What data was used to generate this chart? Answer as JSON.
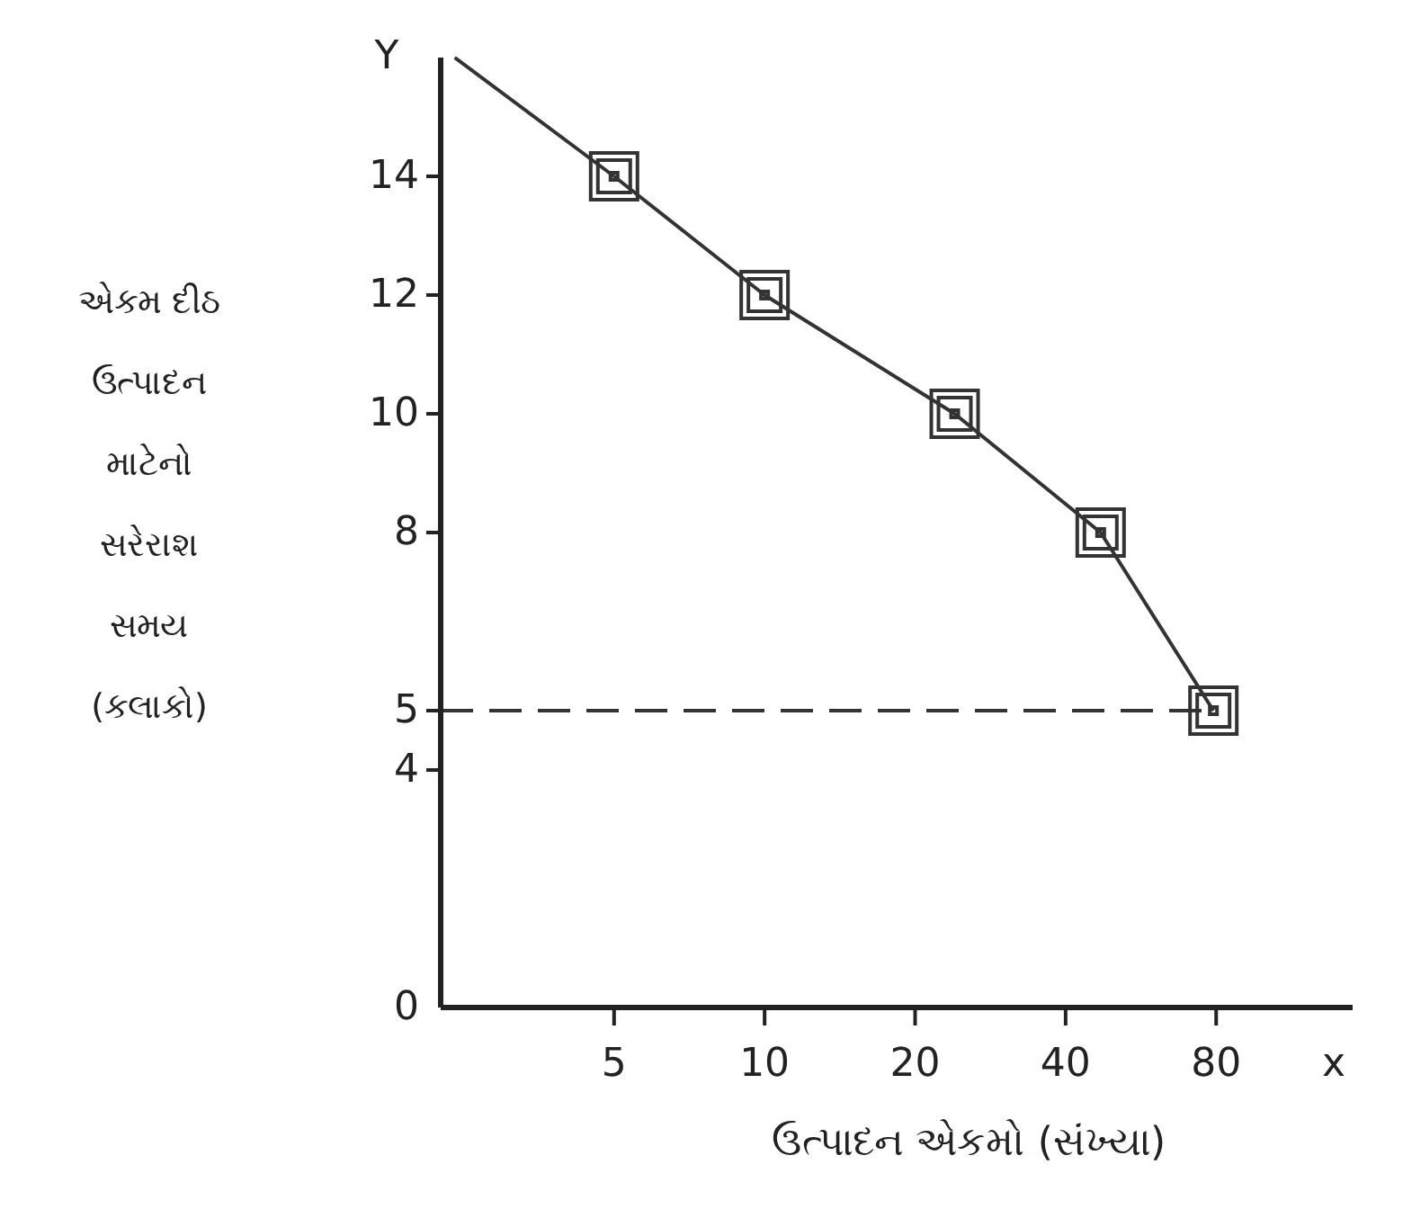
{
  "chart_data": {
    "type": "line",
    "xlabel": "ઉત્પાદન એકમો (સંખ્યા)",
    "ylabel": "એકમ દીઠ\nઉત્પાદન\nમાટેનો\nસરેરાશ\nસમય\n(કલાકો)",
    "annotations": [
      "Y",
      "x"
    ],
    "log": "x",
    "xlim": [
      2.25,
      150
    ],
    "ylim": [
      0,
      16
    ],
    "xticks": [
      5,
      10,
      20,
      40,
      80
    ],
    "yticks": [
      0,
      4,
      5,
      8,
      10,
      12,
      14
    ],
    "grid": false,
    "series": [
      {
        "color": "#333333",
        "marker": "square",
        "line_style": "solid",
        "x": [
          5,
          10,
          24,
          47,
          79
        ],
        "values": [
          14,
          12,
          10,
          8,
          5
        ]
      },
      {
        "color": "#333333",
        "line_style": "solid",
        "x": [
          2.4,
          5
        ],
        "values": [
          16,
          14
        ]
      }
    ],
    "ref_lines": [
      {
        "axis": "y",
        "value": 5,
        "label": null,
        "line_style": "dashed",
        "color": "#333333"
      }
    ]
  }
}
